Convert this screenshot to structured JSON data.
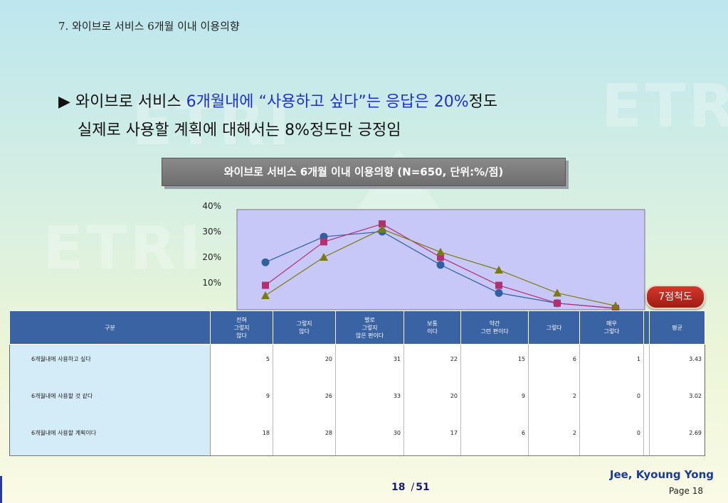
{
  "slide": {
    "title": "7. 와이브로 서비스 6개월 이내 이용의향",
    "headline": {
      "bullet": "▶",
      "part1": "와이브로 서비스 ",
      "highlight": "6개월내에 “사용하고 싶다”는 응답은 20%",
      "part2": "정도",
      "line2": "실제로 사용할 계획에 대해서는 8%정도만 긍정임"
    },
    "chart_box_title": "와이브로 서비스 6개월 이내 이용의향 (N=650, 단위:%/점)",
    "scale_badge": "7점척도",
    "author": "Jee, Kyoung Yong",
    "page_label": "Page 18",
    "page_nav": {
      "current": "18",
      "separator": "/",
      "total": "51"
    },
    "background_logo_text": "ETRI"
  },
  "chart_data": {
    "type": "line",
    "title": "와이브로 서비스 6개월 이내 이용의향 (N=650, 단위:%/점)",
    "categories": [
      "전혀 그렇지 않다",
      "그렇지 않다",
      "별로 그렇지 않은 편이다",
      "보통이다",
      "약간 그런 편이다",
      "그렇다",
      "매우 그렇다"
    ],
    "y_ticks": [
      "10%",
      "20%",
      "30%",
      "40%"
    ],
    "ylim": [
      0,
      40
    ],
    "plot_background": "#c8c8f8",
    "series": [
      {
        "name": "6개월내에 사용하고 싶다",
        "values": [
          5,
          20,
          31,
          22,
          15,
          6,
          1
        ],
        "average": "3.43",
        "color": "#7a7a10",
        "marker": "triangle"
      },
      {
        "name": "6개월내에 사용할 것 같다",
        "values": [
          9,
          26,
          33,
          20,
          9,
          2,
          0
        ],
        "average": "3.02",
        "color": "#b03070",
        "marker": "square"
      },
      {
        "name": "6개월내에 사용할 계획이다",
        "values": [
          18,
          28,
          30,
          17,
          6,
          2,
          0
        ],
        "average": "2.69",
        "color": "#3060a0",
        "marker": "circle"
      }
    ]
  },
  "table": {
    "header_first": "구분",
    "headers": [
      "전혀\n그렇지\n않다",
      "그렇지\n않다",
      "별로\n그렇지\n않은 편이다",
      "보통\n이다",
      "약간\n그런 편이다",
      "그렇다",
      "매우\n그렇다"
    ],
    "header_avg": "평균"
  }
}
